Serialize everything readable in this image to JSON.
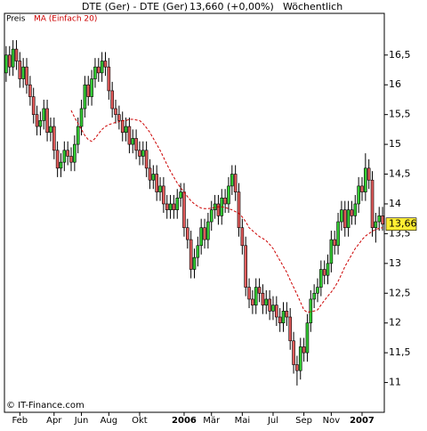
{
  "chart_data": {
    "type": "candlestick",
    "title": "DTE (Ger) - DTE (Ger)",
    "price_text": "13,660 (+0,00%)",
    "period": "Wöchentlich",
    "source": "© IT-Finance.com",
    "last_price_label": "13,66",
    "categories": [
      null,
      null,
      null,
      null,
      "Feb",
      null,
      null,
      null,
      null,
      null,
      null,
      null,
      null,
      null,
      "Apr",
      null,
      null,
      null,
      null,
      null,
      null,
      null,
      "Jun",
      null,
      null,
      null,
      null,
      null,
      null,
      null,
      "Aug",
      null,
      null,
      null,
      null,
      null,
      null,
      null,
      null,
      "Okt",
      null,
      null,
      null,
      null,
      null,
      null,
      null,
      null,
      null,
      null,
      null,
      null,
      "2006",
      null,
      null,
      null,
      null,
      null,
      null,
      null,
      "Mär",
      null,
      null,
      null,
      null,
      null,
      null,
      null,
      null,
      "Mai",
      null,
      null,
      null,
      null,
      null,
      null,
      null,
      null,
      "Jul",
      null,
      null,
      null,
      null,
      null,
      null,
      null,
      null,
      "Sep",
      null,
      null,
      null,
      null,
      null,
      null,
      null,
      "Nov",
      null,
      null,
      null,
      null,
      null,
      null,
      null,
      null,
      "2007",
      null,
      null,
      null,
      null,
      null,
      null
    ],
    "bold_categories": [
      "2006",
      "2007"
    ],
    "series": [
      {
        "name": "Preis",
        "up_color": "#33cc33",
        "down_color": "#e05a5a",
        "open": [
          16.2,
          16.5,
          16.3,
          16.6,
          16.4,
          16.1,
          16.3,
          16.0,
          15.8,
          15.5,
          15.3,
          15.4,
          15.6,
          15.2,
          15.3,
          14.9,
          14.6,
          14.7,
          14.9,
          14.8,
          14.7,
          15.0,
          15.3,
          15.6,
          16.0,
          15.8,
          16.1,
          16.3,
          16.2,
          16.4,
          16.3,
          15.9,
          15.6,
          15.5,
          15.4,
          15.2,
          15.3,
          15.0,
          15.1,
          14.9,
          14.8,
          14.9,
          14.6,
          14.4,
          14.5,
          14.2,
          14.3,
          14.0,
          13.9,
          14.0,
          13.9,
          14.1,
          14.2,
          13.6,
          13.4,
          12.9,
          13.1,
          13.3,
          13.6,
          13.4,
          13.7,
          13.9,
          14.0,
          13.8,
          14.1,
          14.0,
          14.3,
          14.5,
          14.2,
          13.6,
          13.3,
          12.6,
          12.4,
          12.3,
          12.6,
          12.5,
          12.3,
          12.4,
          12.2,
          12.3,
          12.1,
          12.0,
          12.2,
          12.1,
          11.7,
          11.3,
          11.2,
          11.6,
          11.5,
          12.0,
          12.4,
          12.5,
          12.6,
          12.9,
          12.8,
          13.0,
          13.4,
          13.3,
          13.7,
          13.9,
          13.6,
          13.9,
          13.8,
          14.0,
          14.3,
          14.2,
          14.6,
          14.4,
          13.6,
          13.7,
          13.8
        ],
        "high": [
          16.65,
          16.65,
          16.75,
          16.75,
          16.55,
          16.45,
          16.45,
          16.15,
          15.95,
          15.65,
          15.55,
          15.75,
          15.75,
          15.45,
          15.45,
          15.05,
          14.85,
          15.05,
          15.05,
          14.95,
          15.15,
          15.45,
          15.75,
          16.15,
          16.15,
          16.25,
          16.45,
          16.45,
          16.55,
          16.55,
          16.45,
          16.05,
          15.75,
          15.65,
          15.55,
          15.45,
          15.45,
          15.25,
          15.25,
          15.05,
          15.05,
          15.05,
          14.75,
          14.65,
          14.65,
          14.45,
          14.45,
          14.15,
          14.15,
          14.15,
          14.25,
          14.35,
          14.35,
          13.75,
          13.55,
          13.25,
          13.45,
          13.75,
          13.75,
          13.85,
          14.05,
          14.15,
          14.15,
          14.25,
          14.25,
          14.45,
          14.65,
          14.65,
          14.35,
          13.75,
          13.45,
          12.75,
          12.55,
          12.75,
          12.75,
          12.65,
          12.55,
          12.55,
          12.45,
          12.45,
          12.25,
          12.35,
          12.35,
          12.25,
          11.85,
          11.45,
          11.75,
          11.75,
          12.15,
          12.55,
          12.65,
          12.75,
          13.05,
          13.05,
          13.15,
          13.55,
          13.55,
          13.85,
          14.05,
          14.05,
          14.05,
          14.05,
          14.15,
          14.45,
          14.45,
          14.85,
          14.75,
          14.55,
          13.85,
          13.95,
          13.95
        ],
        "low": [
          16.05,
          16.15,
          16.15,
          16.25,
          15.95,
          15.95,
          15.85,
          15.65,
          15.35,
          15.15,
          15.15,
          15.25,
          15.05,
          15.05,
          14.75,
          14.45,
          14.45,
          14.55,
          14.65,
          14.55,
          14.55,
          14.85,
          15.15,
          15.45,
          15.65,
          15.65,
          15.95,
          16.05,
          16.05,
          16.15,
          15.75,
          15.45,
          15.35,
          15.25,
          15.05,
          15.05,
          14.85,
          14.85,
          14.75,
          14.65,
          14.65,
          14.45,
          14.25,
          14.25,
          14.05,
          14.05,
          13.85,
          13.75,
          13.75,
          13.75,
          13.75,
          13.95,
          13.45,
          13.25,
          12.75,
          12.75,
          12.95,
          13.15,
          13.25,
          13.25,
          13.55,
          13.75,
          13.65,
          13.65,
          13.85,
          13.85,
          14.15,
          14.05,
          13.45,
          13.15,
          12.45,
          12.25,
          12.15,
          12.15,
          12.35,
          12.15,
          12.15,
          12.05,
          12.05,
          11.95,
          11.85,
          11.85,
          11.95,
          11.55,
          11.15,
          10.95,
          11.05,
          11.35,
          11.35,
          11.85,
          12.25,
          12.35,
          12.45,
          12.65,
          12.65,
          12.85,
          13.15,
          13.15,
          13.55,
          13.45,
          13.45,
          13.65,
          13.65,
          13.85,
          14.05,
          14.05,
          14.25,
          13.45,
          13.35,
          13.55,
          13.55
        ],
        "close": [
          16.5,
          16.3,
          16.6,
          16.4,
          16.1,
          16.3,
          16.0,
          15.8,
          15.5,
          15.3,
          15.4,
          15.6,
          15.2,
          15.3,
          14.9,
          14.6,
          14.7,
          14.9,
          14.8,
          14.7,
          15.0,
          15.3,
          15.6,
          16.0,
          15.8,
          16.1,
          16.3,
          16.2,
          16.4,
          16.3,
          15.9,
          15.6,
          15.5,
          15.4,
          15.2,
          15.3,
          15.0,
          15.1,
          14.9,
          14.8,
          14.9,
          14.6,
          14.4,
          14.5,
          14.2,
          14.3,
          14.0,
          13.9,
          14.0,
          13.9,
          14.1,
          14.2,
          13.6,
          13.4,
          12.9,
          13.1,
          13.3,
          13.6,
          13.4,
          13.7,
          13.9,
          14.0,
          13.8,
          14.1,
          14.0,
          14.3,
          14.5,
          14.2,
          13.6,
          13.3,
          12.6,
          12.4,
          12.3,
          12.6,
          12.5,
          12.3,
          12.4,
          12.2,
          12.3,
          12.1,
          12.0,
          12.2,
          12.1,
          11.7,
          11.3,
          11.2,
          11.6,
          11.5,
          12.0,
          12.4,
          12.5,
          12.6,
          12.9,
          12.8,
          13.0,
          13.4,
          13.3,
          13.7,
          13.9,
          13.6,
          13.9,
          13.8,
          14.0,
          14.3,
          14.2,
          14.6,
          14.4,
          13.6,
          13.7,
          13.8,
          13.66
        ]
      },
      {
        "name": "MA (Einfach 20)",
        "color": "#cc0000",
        "values": [
          null,
          null,
          null,
          null,
          null,
          null,
          null,
          null,
          null,
          null,
          null,
          null,
          null,
          null,
          null,
          null,
          null,
          null,
          null,
          15.57,
          15.45,
          15.35,
          15.25,
          15.15,
          15.08,
          15.05,
          15.1,
          15.18,
          15.25,
          15.3,
          15.33,
          15.35,
          15.37,
          15.38,
          15.4,
          15.4,
          15.42,
          15.42,
          15.41,
          15.4,
          15.35,
          15.28,
          15.2,
          15.1,
          15.0,
          14.9,
          14.78,
          14.66,
          14.55,
          14.45,
          14.35,
          14.27,
          14.2,
          14.12,
          14.05,
          14.0,
          13.96,
          13.93,
          13.92,
          13.92,
          13.93,
          13.94,
          13.95,
          13.95,
          13.94,
          13.92,
          13.9,
          13.87,
          13.84,
          13.78,
          13.7,
          13.6,
          13.55,
          13.5,
          13.45,
          13.42,
          13.38,
          13.32,
          13.25,
          13.15,
          13.05,
          12.95,
          12.85,
          12.72,
          12.6,
          12.48,
          12.35,
          12.22,
          12.18,
          12.19,
          12.2,
          12.22,
          12.3,
          12.38,
          12.45,
          12.52,
          12.6,
          12.7,
          12.82,
          12.95,
          13.05,
          13.15,
          13.25,
          13.32,
          13.4,
          13.46,
          13.5,
          13.54,
          13.57,
          13.59,
          13.6
        ]
      }
    ],
    "ylim": [
      10.5,
      17.2
    ],
    "yticks": [
      11,
      {
        "value": 11.5,
        "label": "11,5"
      },
      12,
      {
        "value": 12.5,
        "label": "12,5"
      },
      13,
      {
        "value": 13.5,
        "label": "13,5"
      },
      14,
      {
        "value": 14.5,
        "label": "14,5"
      },
      15,
      {
        "value": 15.5,
        "label": "15,5"
      },
      16,
      {
        "value": 16.5,
        "label": "16,5"
      }
    ],
    "label_box_color": "#ffee33"
  }
}
